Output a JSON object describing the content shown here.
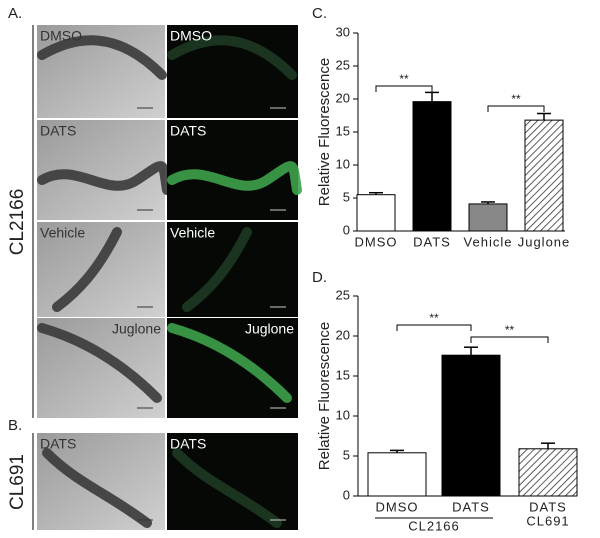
{
  "figure": {
    "panel_labels": [
      "A.",
      "B.",
      "C.",
      "D."
    ],
    "strain_labels": [
      "CL2166",
      "CL691"
    ],
    "micrographs": [
      [
        "DMSO",
        "DMSO"
      ],
      [
        "DATS",
        "DATS"
      ],
      [
        "Vehicle",
        "Vehicle"
      ],
      [
        "Juglone",
        "Juglone"
      ],
      [
        "DATS",
        "DATS"
      ]
    ]
  },
  "chart_data": [
    {
      "type": "bar",
      "y_label": "Relative Fluorescence",
      "categories": [
        "DMSO",
        "DATS",
        "Vehicle",
        "Juglone"
      ],
      "values": [
        5.5,
        19.6,
        4.1,
        16.8
      ],
      "errors": [
        0.3,
        1.4,
        0.3,
        1.0
      ],
      "colors": [
        "#ffffff",
        "#000000",
        "#888888",
        "hatch"
      ],
      "ylim": [
        0,
        30
      ],
      "yticks": [
        0,
        5,
        10,
        15,
        20,
        25,
        30
      ],
      "annotations": [
        "**",
        "**"
      ]
    },
    {
      "type": "bar",
      "y_label": "Relative Fluorescence",
      "categories": [
        "DMSO",
        "DATS",
        "DATS"
      ],
      "group_labels": [
        "CL2166",
        "CL691"
      ],
      "values": [
        5.4,
        17.6,
        5.9
      ],
      "errors": [
        0.3,
        1.0,
        0.7
      ],
      "colors": [
        "#ffffff",
        "#000000",
        "hatch"
      ],
      "ylim": [
        0,
        25
      ],
      "yticks": [
        0,
        5,
        10,
        15,
        20,
        25
      ],
      "annotations": [
        "**",
        "**"
      ]
    }
  ]
}
